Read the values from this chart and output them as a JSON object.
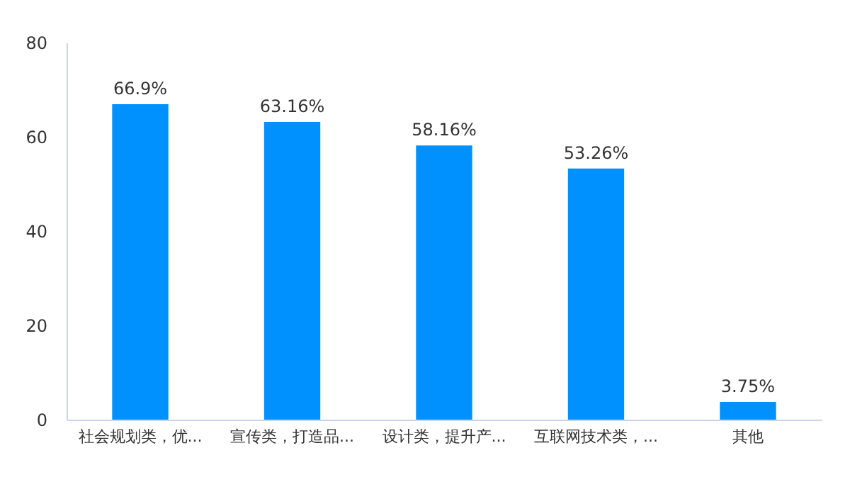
{
  "chart_data": {
    "type": "bar",
    "categories": [
      "社会规划类，优...",
      "宣传类，打造品...",
      "设计类，提升产...",
      "互联网技术类，...",
      "其他"
    ],
    "values": [
      66.9,
      63.16,
      58.16,
      53.26,
      3.75
    ],
    "value_labels": [
      "66.9%",
      "63.16%",
      "58.16%",
      "53.26%",
      "3.75%"
    ],
    "color": "#0091ff",
    "ylim": [
      0,
      80
    ],
    "yticks": [
      0,
      20,
      40,
      60,
      80
    ],
    "grid": false
  }
}
